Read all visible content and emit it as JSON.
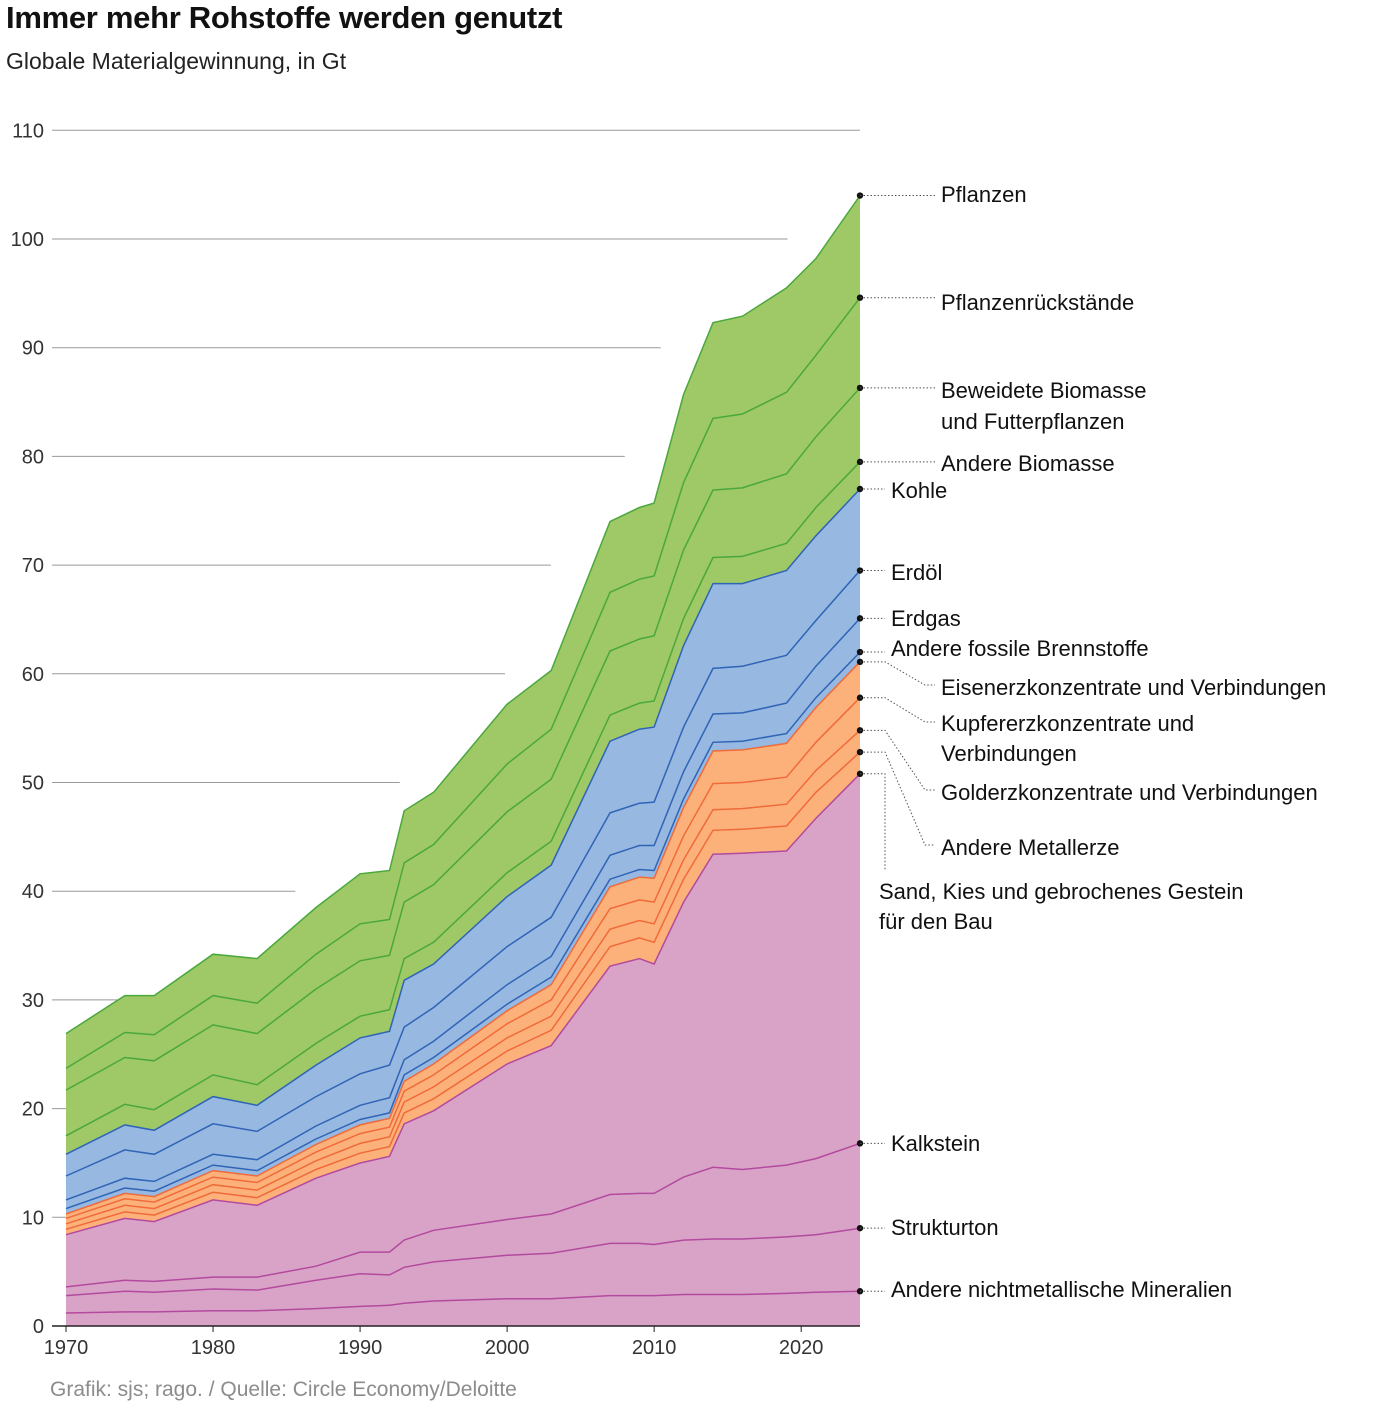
{
  "chart_data": {
    "type": "area",
    "title": "Immer mehr Rohstoffe werden genutzt",
    "subtitle": "Globale Materialgewinnung, in Gt",
    "source": "Grafik: sjs; rago. / Quelle: Circle Economy/Deloitte",
    "xlim": [
      1970,
      2024
    ],
    "ylim": [
      0,
      110
    ],
    "xticks": [
      1970,
      1980,
      1990,
      2000,
      2010,
      2020
    ],
    "yticks": [
      0,
      10,
      20,
      30,
      40,
      50,
      60,
      70,
      80,
      90,
      100,
      110
    ],
    "x": [
      1970,
      1974,
      1976,
      1980,
      1983,
      1987,
      1990,
      1992,
      1993,
      1995,
      2000,
      2003,
      2007,
      2009,
      2010,
      2012,
      2014,
      2016,
      2019,
      2021,
      2024
    ],
    "series": [
      {
        "name": "Andere nichtmetallische Mineralien",
        "group": "minerals",
        "values": [
          1.2,
          1.3,
          1.3,
          1.4,
          1.4,
          1.6,
          1.8,
          1.9,
          2.1,
          2.3,
          2.5,
          2.5,
          2.8,
          2.8,
          2.8,
          2.9,
          2.9,
          2.9,
          3.0,
          3.1,
          3.2
        ]
      },
      {
        "name": "Strukturton",
        "group": "minerals",
        "values": [
          1.6,
          1.9,
          1.8,
          2.0,
          1.9,
          2.6,
          3.0,
          2.8,
          3.3,
          3.6,
          4.0,
          4.2,
          4.8,
          4.8,
          4.7,
          5.0,
          5.1,
          5.1,
          5.2,
          5.3,
          5.8
        ]
      },
      {
        "name": "Kalkstein",
        "group": "minerals",
        "values": [
          0.8,
          1.0,
          1.0,
          1.1,
          1.2,
          1.3,
          2.0,
          2.1,
          2.5,
          2.9,
          3.3,
          3.6,
          4.5,
          4.6,
          4.7,
          5.8,
          6.6,
          6.4,
          6.6,
          7.0,
          7.8
        ]
      },
      {
        "name": "Sand, Kies und gebrochenes Gestein für den Bau",
        "group": "minerals",
        "values": [
          4.8,
          5.7,
          5.5,
          7.1,
          6.6,
          8.1,
          8.2,
          8.8,
          10.7,
          11.0,
          14.3,
          15.5,
          21.0,
          21.6,
          21.1,
          25.3,
          28.8,
          29.1,
          28.9,
          31.3,
          34.0
        ]
      },
      {
        "name": "Andere Metallerze",
        "group": "metals",
        "values": [
          0.5,
          0.6,
          0.6,
          0.7,
          0.7,
          0.8,
          0.9,
          0.9,
          1.0,
          1.1,
          1.2,
          1.4,
          1.8,
          1.9,
          2.0,
          2.1,
          2.2,
          2.2,
          2.3,
          2.4,
          2.0
        ]
      },
      {
        "name": "Golderzkonzentrate und Verbindungen",
        "group": "metals",
        "values": [
          0.5,
          0.6,
          0.6,
          0.7,
          0.7,
          0.8,
          0.9,
          0.9,
          1.0,
          1.1,
          1.2,
          1.3,
          1.6,
          1.6,
          1.7,
          1.8,
          1.9,
          1.9,
          2.0,
          2.0,
          2.0
        ]
      },
      {
        "name": "Kupfererzkonzentrate und Verbindungen",
        "group": "metals",
        "values": [
          0.5,
          0.6,
          0.6,
          0.7,
          0.7,
          0.8,
          0.9,
          0.9,
          1.0,
          1.1,
          1.3,
          1.5,
          1.9,
          1.9,
          2.0,
          2.2,
          2.4,
          2.4,
          2.5,
          2.6,
          3.0
        ]
      },
      {
        "name": "Eisenerzkonzentrate und Verbindungen",
        "group": "metals",
        "values": [
          0.4,
          0.5,
          0.5,
          0.6,
          0.6,
          0.7,
          0.8,
          0.8,
          0.9,
          1.0,
          1.2,
          1.4,
          2.0,
          2.1,
          2.2,
          2.6,
          3.0,
          3.0,
          3.1,
          3.2,
          3.3
        ]
      },
      {
        "name": "Andere fossile Brennstoffe",
        "group": "fossil",
        "values": [
          0.5,
          0.5,
          0.5,
          0.5,
          0.5,
          0.5,
          0.5,
          0.5,
          0.6,
          0.6,
          0.6,
          0.7,
          0.7,
          0.7,
          0.7,
          0.8,
          0.8,
          0.8,
          0.9,
          0.9,
          0.9
        ]
      },
      {
        "name": "Erdgas",
        "group": "fossil",
        "values": [
          0.8,
          0.9,
          0.9,
          1.0,
          1.0,
          1.2,
          1.3,
          1.4,
          1.4,
          1.5,
          1.8,
          1.9,
          2.2,
          2.2,
          2.3,
          2.5,
          2.6,
          2.6,
          2.8,
          2.9,
          3.1
        ]
      },
      {
        "name": "Erdöl",
        "group": "fossil",
        "values": [
          2.2,
          2.6,
          2.5,
          2.8,
          2.6,
          2.7,
          2.9,
          3.0,
          3.0,
          3.1,
          3.5,
          3.6,
          3.9,
          3.9,
          4.0,
          4.1,
          4.2,
          4.3,
          4.4,
          4.2,
          4.4
        ]
      },
      {
        "name": "Kohle",
        "group": "fossil",
        "values": [
          2.0,
          2.3,
          2.2,
          2.5,
          2.4,
          2.9,
          3.3,
          3.1,
          4.3,
          4.0,
          4.6,
          4.8,
          6.6,
          6.8,
          6.9,
          7.5,
          7.8,
          7.6,
          7.8,
          7.8,
          7.5
        ]
      },
      {
        "name": "Andere Biomasse",
        "group": "biomass",
        "values": [
          1.7,
          1.9,
          1.9,
          2.0,
          1.9,
          2.0,
          2.0,
          2.0,
          2.0,
          2.0,
          2.2,
          2.2,
          2.4,
          2.4,
          2.4,
          2.5,
          2.4,
          2.5,
          2.5,
          2.6,
          2.5
        ]
      },
      {
        "name": "Beweidete Biomasse und Futterpflanzen",
        "group": "biomass",
        "values": [
          4.2,
          4.3,
          4.5,
          4.6,
          4.7,
          5.0,
          5.1,
          5.0,
          5.2,
          5.3,
          5.6,
          5.7,
          5.9,
          5.9,
          6.0,
          6.3,
          6.2,
          6.3,
          6.4,
          6.5,
          6.8
        ]
      },
      {
        "name": "Pflanzenrückstände",
        "group": "biomass",
        "values": [
          2.0,
          2.3,
          2.4,
          2.7,
          2.8,
          3.2,
          3.4,
          3.3,
          3.6,
          3.7,
          4.4,
          4.6,
          5.4,
          5.5,
          5.5,
          6.2,
          6.6,
          6.8,
          7.5,
          7.5,
          8.3
        ]
      },
      {
        "name": "Pflanzen",
        "group": "biomass",
        "values": [
          3.2,
          3.4,
          3.6,
          3.8,
          4.1,
          4.3,
          4.6,
          4.5,
          4.8,
          4.8,
          5.5,
          5.4,
          6.5,
          6.6,
          6.7,
          8.1,
          8.8,
          9.0,
          9.6,
          8.9,
          9.4
        ]
      }
    ]
  },
  "labels": {
    "series": [
      "Andere nichtmetallische Mineralien",
      "Strukturton",
      "Kalkstein",
      "Sand, Kies und gebrochenes Gestein",
      "für den Bau",
      "Andere Metallerze",
      "Golderzkonzentrate und Verbindungen",
      "Kupfererzkonzentrate und",
      "Verbindungen",
      "Eisenerzkonzentrate und Verbindungen",
      "Andere fossile Brennstoffe",
      "Erdgas",
      "Erdöl",
      "Kohle",
      "Andere Biomasse",
      "Beweidete Biomasse",
      "und Futterpflanzen",
      "Pflanzenrückstände",
      "Pflanzen"
    ]
  },
  "colors": {
    "minerals_fill": "#d9a3c8",
    "minerals_line": "#b34a9e",
    "metals_fill": "#fdb17a",
    "metals_line": "#f06a3a",
    "fossil_fill": "#97b8e0",
    "fossil_line": "#2f64b7",
    "biomass_fill": "#9fc866",
    "biomass_line": "#4aa83d",
    "grid": "#999999"
  }
}
